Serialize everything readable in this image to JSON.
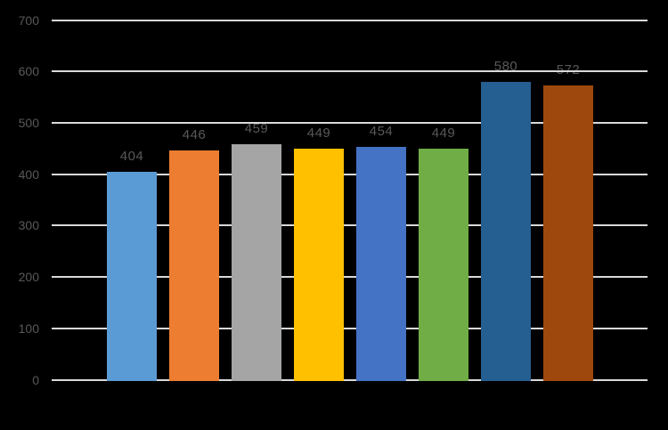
{
  "chart_data": {
    "type": "bar",
    "title": "",
    "xlabel": "",
    "ylabel": "",
    "categories": [
      "",
      "",
      "",
      "",
      "",
      "",
      "",
      ""
    ],
    "values": [
      404,
      446,
      459,
      449,
      454,
      449,
      580,
      572
    ],
    "data_labels": [
      "404",
      "446",
      "459",
      "449",
      "454",
      "449",
      "580",
      "572"
    ],
    "ylim": [
      0,
      700
    ],
    "yticks": [
      0,
      100,
      200,
      300,
      400,
      500,
      600,
      700
    ],
    "grid": true,
    "legend": false,
    "x_axis_labels_visible": false,
    "bar_colors": [
      "#5B9BD5",
      "#ED7D31",
      "#A5A5A5",
      "#FFC000",
      "#4472C4",
      "#70AD47",
      "#255E91",
      "#9E480E"
    ],
    "colors": {
      "background": "#000000",
      "gridline": "#D9D9D9",
      "tick_label": "#595959",
      "data_label": "#595959"
    }
  }
}
